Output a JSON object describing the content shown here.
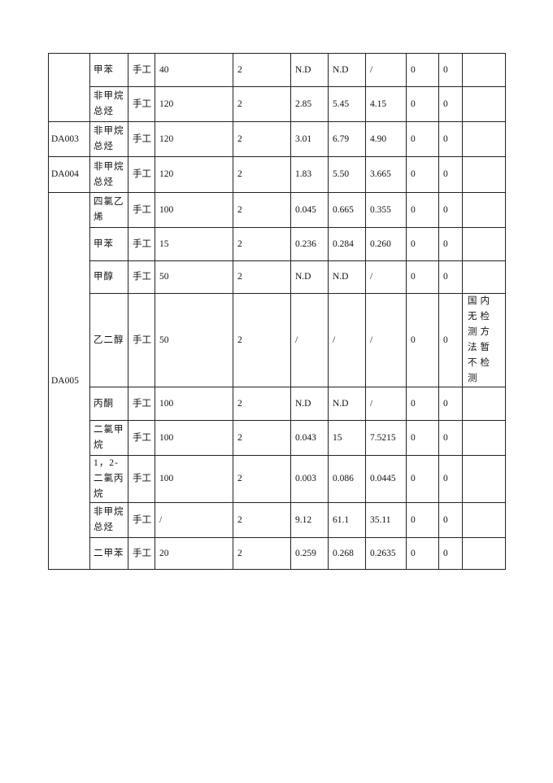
{
  "table": {
    "groups": [
      {
        "id": "",
        "rows": [
          {
            "name": "甲苯",
            "method": "手工",
            "limit": "40",
            "count": "2",
            "min": "N.D",
            "max": "N.D",
            "avg": "/",
            "c1": "0",
            "c2": "0",
            "remark": ""
          },
          {
            "name": "非甲烷总烃",
            "method": "手工",
            "limit": "120",
            "count": "2",
            "min": "2.85",
            "max": "5.45",
            "avg": "4.15",
            "c1": "0",
            "c2": "0",
            "remark": ""
          }
        ]
      },
      {
        "id": "DA003",
        "rows": [
          {
            "name": "非甲烷总烃",
            "method": "手工",
            "limit": "120",
            "count": "2",
            "min": "3.01",
            "max": "6.79",
            "avg": "4.90",
            "c1": "0",
            "c2": "0",
            "remark": ""
          }
        ]
      },
      {
        "id": "DA004",
        "rows": [
          {
            "name": "非甲烷总烃",
            "method": "手工",
            "limit": "120",
            "count": "2",
            "min": "1.83",
            "max": "5.50",
            "avg": "3.665",
            "c1": "0",
            "c2": "0",
            "remark": ""
          }
        ]
      },
      {
        "id": "DA005",
        "rows": [
          {
            "name": "四氯乙烯",
            "method": "手工",
            "limit": "100",
            "count": "2",
            "min": "0.045",
            "max": "0.665",
            "avg": "0.355",
            "c1": "0",
            "c2": "0",
            "remark": ""
          },
          {
            "name": "甲苯",
            "method": "手工",
            "limit": "15",
            "count": "2",
            "min": "0.236",
            "max": "0.284",
            "avg": "0.260",
            "c1": "0",
            "c2": "0",
            "remark": ""
          },
          {
            "name": "甲醇",
            "method": "手工",
            "limit": "50",
            "count": "2",
            "min": "N.D",
            "max": "N.D",
            "avg": "/",
            "c1": "0",
            "c2": "0",
            "remark": ""
          },
          {
            "name": "乙二醇",
            "method": "手工",
            "limit": "50",
            "count": "2",
            "min": "/",
            "max": "/",
            "avg": "/",
            "c1": "0",
            "c2": "0",
            "remark": "国内无检测方法暂不检测"
          },
          {
            "name": "丙酮",
            "method": "手工",
            "limit": "100",
            "count": "2",
            "min": "N.D",
            "max": "N.D",
            "avg": "/",
            "c1": "0",
            "c2": "0",
            "remark": ""
          },
          {
            "name": "二氯甲烷",
            "method": "手工",
            "limit": "100",
            "count": "2",
            "min": "0.043",
            "max": "15",
            "avg": "7.5215",
            "c1": "0",
            "c2": "0",
            "remark": ""
          },
          {
            "name": "1，2-二氯丙烷",
            "method": "手工",
            "limit": "100",
            "count": "2",
            "min": "0.003",
            "max": "0.086",
            "avg": "0.0445",
            "c1": "0",
            "c2": "0",
            "remark": ""
          },
          {
            "name": "非甲烷总烃",
            "method": "手工",
            "limit": "/",
            "count": "2",
            "min": "9.12",
            "max": "61.1",
            "avg": "35.11",
            "c1": "0",
            "c2": "0",
            "remark": ""
          },
          {
            "name": "二甲苯",
            "method": "手工",
            "limit": "20",
            "count": "2",
            "min": "0.259",
            "max": "0.268",
            "avg": "0.2635",
            "c1": "0",
            "c2": "0",
            "remark": ""
          }
        ]
      }
    ]
  }
}
